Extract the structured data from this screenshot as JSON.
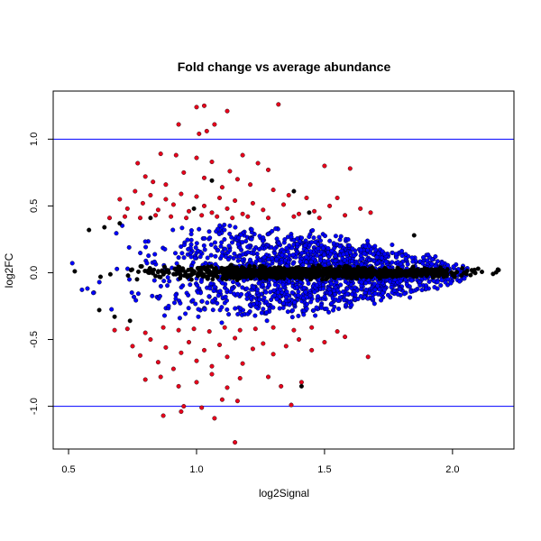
{
  "chart_data": {
    "type": "scatter",
    "title": "Fold change vs average abundance",
    "xlabel": "log2Signal",
    "ylabel": "log2FC",
    "xlim": [
      0.44,
      2.24
    ],
    "ylim": [
      -1.32,
      1.36
    ],
    "x_ticks": [
      0.5,
      1.0,
      1.5,
      2.0
    ],
    "x_tick_labels": [
      "0.5",
      "1.0",
      "1.5",
      "2.0"
    ],
    "y_ticks": [
      -1.0,
      -0.5,
      0.0,
      0.5,
      1.0
    ],
    "y_tick_labels": [
      "-1.0",
      "-0.5",
      "0.0",
      "0.5",
      "1.0"
    ],
    "grid": false,
    "reference_lines": {
      "orientation": "horizontal",
      "y": [
        1.0,
        -1.0
      ],
      "color": "#0000ff"
    },
    "colors": {
      "red": "#e8001c",
      "blue": "#0000ff",
      "black": "#000000"
    },
    "series": [
      {
        "color": "red",
        "points": [
          [
            1.0,
            1.24
          ],
          [
            1.03,
            1.25
          ],
          [
            1.12,
            1.21
          ],
          [
            1.32,
            1.26
          ],
          [
            0.93,
            1.11
          ],
          [
            1.04,
            1.06
          ],
          [
            1.07,
            1.11
          ],
          [
            1.01,
            1.04
          ],
          [
            0.86,
            0.89
          ],
          [
            0.92,
            0.88
          ],
          [
            1.0,
            0.86
          ],
          [
            1.06,
            0.83
          ],
          [
            1.13,
            0.76
          ],
          [
            1.18,
            0.88
          ],
          [
            1.24,
            0.82
          ],
          [
            1.28,
            0.77
          ],
          [
            1.5,
            0.8
          ],
          [
            1.6,
            0.78
          ],
          [
            0.77,
            0.82
          ],
          [
            0.8,
            0.72
          ],
          [
            0.83,
            0.68
          ],
          [
            0.88,
            0.66
          ],
          [
            0.95,
            0.75
          ],
          [
            1.03,
            0.71
          ],
          [
            1.1,
            0.64
          ],
          [
            1.16,
            0.7
          ],
          [
            1.21,
            0.66
          ],
          [
            1.3,
            0.62
          ],
          [
            1.36,
            0.58
          ],
          [
            1.43,
            0.56
          ],
          [
            1.52,
            0.5
          ],
          [
            1.55,
            0.56
          ],
          [
            1.64,
            0.48
          ],
          [
            1.68,
            0.45
          ],
          [
            0.7,
            0.55
          ],
          [
            0.73,
            0.48
          ],
          [
            0.76,
            0.61
          ],
          [
            0.79,
            0.52
          ],
          [
            0.82,
            0.58
          ],
          [
            0.85,
            0.47
          ],
          [
            0.88,
            0.55
          ],
          [
            0.91,
            0.51
          ],
          [
            0.94,
            0.59
          ],
          [
            0.97,
            0.46
          ],
          [
            1.0,
            0.57
          ],
          [
            1.03,
            0.5
          ],
          [
            1.06,
            0.45
          ],
          [
            1.09,
            0.56
          ],
          [
            1.12,
            0.48
          ],
          [
            1.15,
            0.54
          ],
          [
            1.18,
            0.44
          ],
          [
            1.22,
            0.52
          ],
          [
            1.26,
            0.47
          ],
          [
            1.34,
            0.51
          ],
          [
            1.4,
            0.44
          ],
          [
            1.46,
            0.46
          ],
          [
            0.72,
            0.42
          ],
          [
            0.78,
            0.41
          ],
          [
            0.84,
            0.43
          ],
          [
            0.9,
            0.42
          ],
          [
            0.96,
            0.41
          ],
          [
            1.02,
            0.43
          ],
          [
            1.08,
            0.42
          ],
          [
            1.14,
            0.41
          ],
          [
            1.2,
            0.42
          ],
          [
            1.28,
            0.41
          ],
          [
            1.38,
            0.42
          ],
          [
            1.48,
            0.41
          ],
          [
            0.66,
            0.41
          ],
          [
            1.58,
            0.43
          ],
          [
            0.73,
            -0.42
          ],
          [
            0.8,
            -0.45
          ],
          [
            0.87,
            -0.41
          ],
          [
            0.93,
            -0.43
          ],
          [
            0.99,
            -0.42
          ],
          [
            1.05,
            -0.44
          ],
          [
            1.11,
            -0.41
          ],
          [
            1.17,
            -0.43
          ],
          [
            1.23,
            -0.42
          ],
          [
            1.3,
            -0.41
          ],
          [
            1.38,
            -0.43
          ],
          [
            1.45,
            -0.41
          ],
          [
            1.55,
            -0.44
          ],
          [
            0.68,
            -0.43
          ],
          [
            0.75,
            -0.55
          ],
          [
            0.78,
            -0.62
          ],
          [
            0.82,
            -0.5
          ],
          [
            0.85,
            -0.67
          ],
          [
            0.88,
            -0.56
          ],
          [
            0.91,
            -0.72
          ],
          [
            0.94,
            -0.6
          ],
          [
            0.97,
            -0.52
          ],
          [
            1.0,
            -0.66
          ],
          [
            1.03,
            -0.58
          ],
          [
            1.06,
            -0.7
          ],
          [
            1.09,
            -0.54
          ],
          [
            1.12,
            -0.63
          ],
          [
            1.15,
            -0.49
          ],
          [
            1.18,
            -0.68
          ],
          [
            1.22,
            -0.57
          ],
          [
            1.26,
            -0.53
          ],
          [
            1.3,
            -0.61
          ],
          [
            1.35,
            -0.55
          ],
          [
            1.4,
            -0.5
          ],
          [
            1.45,
            -0.58
          ],
          [
            1.5,
            -0.52
          ],
          [
            1.58,
            -0.48
          ],
          [
            1.67,
            -0.63
          ],
          [
            0.8,
            -0.8
          ],
          [
            0.86,
            -0.78
          ],
          [
            0.93,
            -0.85
          ],
          [
            1.0,
            -0.82
          ],
          [
            1.06,
            -0.76
          ],
          [
            1.12,
            -0.86
          ],
          [
            1.17,
            -0.79
          ],
          [
            1.28,
            -0.78
          ],
          [
            1.33,
            -0.85
          ],
          [
            1.41,
            -0.82
          ],
          [
            1.1,
            -0.95
          ],
          [
            1.16,
            -0.96
          ],
          [
            0.95,
            -1.0
          ],
          [
            1.02,
            -1.01
          ],
          [
            1.37,
            -0.99
          ],
          [
            0.87,
            -1.07
          ],
          [
            0.94,
            -1.04
          ],
          [
            1.07,
            -1.09
          ],
          [
            1.15,
            -1.27
          ]
        ]
      },
      {
        "color": "blue",
        "spread": [
          [
            0.48,
            0.05
          ],
          [
            0.55,
            0.22
          ],
          [
            0.62,
            0.3
          ],
          [
            0.7,
            0.36
          ],
          [
            0.85,
            0.38
          ],
          [
            1.0,
            0.38
          ],
          [
            1.15,
            0.38
          ],
          [
            1.3,
            0.36
          ],
          [
            1.45,
            0.33
          ],
          [
            1.6,
            0.28
          ],
          [
            1.75,
            0.23
          ],
          [
            1.9,
            0.16
          ],
          [
            2.0,
            0.1
          ],
          [
            2.06,
            0.05
          ]
        ]
      },
      {
        "color": "black",
        "spread": [
          [
            0.45,
            0.05
          ],
          [
            0.55,
            0.06
          ],
          [
            0.7,
            0.05
          ],
          [
            0.9,
            0.04
          ],
          [
            1.2,
            0.04
          ],
          [
            1.5,
            0.035
          ],
          [
            1.8,
            0.03
          ],
          [
            2.0,
            0.025
          ],
          [
            2.18,
            0.02
          ]
        ],
        "points": [
          [
            0.58,
            0.32
          ],
          [
            0.64,
            0.34
          ],
          [
            0.7,
            0.37
          ],
          [
            0.82,
            0.41
          ],
          [
            0.99,
            0.48
          ],
          [
            1.06,
            0.69
          ],
          [
            1.38,
            0.61
          ],
          [
            1.44,
            0.45
          ],
          [
            0.62,
            -0.28
          ],
          [
            0.68,
            -0.33
          ],
          [
            0.74,
            -0.36
          ],
          [
            1.41,
            -0.85
          ],
          [
            1.85,
            0.28
          ],
          [
            2.1,
            0.03
          ],
          [
            2.18,
            0.02
          ]
        ]
      }
    ]
  }
}
